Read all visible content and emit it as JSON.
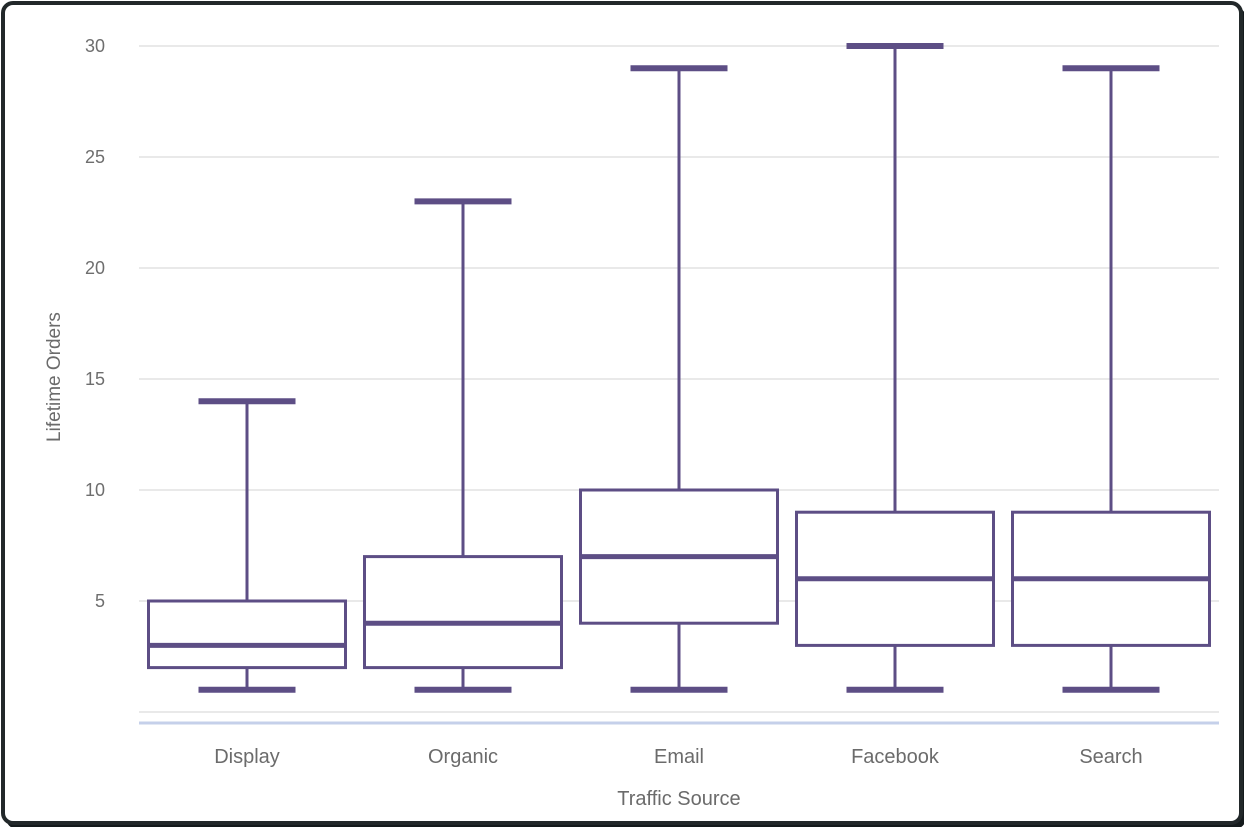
{
  "chart_data": {
    "type": "boxplot",
    "title": "",
    "xlabel": "Traffic Source",
    "ylabel": "Lifetime Orders",
    "categories": [
      "Display",
      "Organic",
      "Email",
      "Facebook",
      "Search"
    ],
    "boxes": [
      {
        "category": "Display",
        "min": 1,
        "q1": 2,
        "median": 3,
        "q3": 5,
        "max": 14
      },
      {
        "category": "Organic",
        "min": 1,
        "q1": 2,
        "median": 4,
        "q3": 7,
        "max": 23
      },
      {
        "category": "Email",
        "min": 1,
        "q1": 4,
        "median": 7,
        "q3": 10,
        "max": 29
      },
      {
        "category": "Facebook",
        "min": 1,
        "q1": 3,
        "median": 6,
        "q3": 9,
        "max": 30
      },
      {
        "category": "Search",
        "min": 1,
        "q1": 3,
        "median": 6,
        "q3": 9,
        "max": 29
      }
    ],
    "y_ticks": [
      5,
      10,
      15,
      20,
      25,
      30
    ],
    "y_gridlines": [
      0,
      5,
      10,
      15,
      20,
      25,
      30
    ],
    "ylim": [
      0,
      30.5
    ],
    "grid": true,
    "legend": "none",
    "colors": {
      "box_stroke": "#5d4e85",
      "box_fill": "#ffffff",
      "gridline": "#e9e9e9",
      "axis_line": "#c5d0ea",
      "tick_label": "#6e6e6e",
      "axis_title": "#6b6b6b",
      "frame_border": "#22282a",
      "background": "#ffffff"
    }
  }
}
